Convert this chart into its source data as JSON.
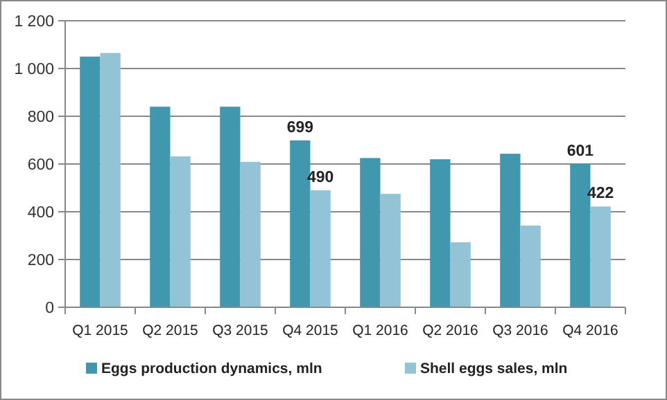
{
  "chart_data": {
    "type": "bar",
    "categories": [
      "Q1 2015",
      "Q2 2015",
      "Q3 2015",
      "Q4 2015",
      "Q1 2016",
      "Q2 2016",
      "Q3 2016",
      "Q4 2016"
    ],
    "series": [
      {
        "name": "Eggs production dynamics, mln",
        "color": "#4197ae",
        "values": [
          1050,
          840,
          840,
          699,
          625,
          620,
          643,
          601
        ],
        "value_labels": [
          null,
          null,
          null,
          "699",
          null,
          null,
          null,
          "601"
        ]
      },
      {
        "name": "Shell eggs sales, mln",
        "color": "#93c4d6",
        "values": [
          1065,
          632,
          609,
          490,
          475,
          272,
          342,
          422
        ],
        "value_labels": [
          null,
          null,
          null,
          "490",
          null,
          null,
          null,
          "422"
        ]
      }
    ],
    "ylim": [
      0,
      1200
    ],
    "yticks": [
      0,
      200,
      400,
      600,
      800,
      {
        "value": 1000,
        "label": "1 000"
      },
      {
        "value": 1200,
        "label": "1 200"
      }
    ],
    "grid": "y",
    "legend": "bottom"
  }
}
